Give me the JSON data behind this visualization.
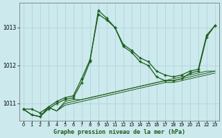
{
  "title": "Graphe pression niveau de la mer (hPa)",
  "background_color": "#cce9ed",
  "plot_bg_color": "#cce9ed",
  "grid_color": "#b0d4d8",
  "line_color": "#1a5c1a",
  "xlim": [
    -0.5,
    23.5
  ],
  "ylim": [
    1010.55,
    1013.65
  ],
  "yticks": [
    1011,
    1012,
    1013
  ],
  "xticks": [
    0,
    1,
    2,
    3,
    4,
    5,
    6,
    7,
    8,
    9,
    10,
    11,
    12,
    13,
    14,
    15,
    16,
    17,
    18,
    19,
    20,
    21,
    22,
    23
  ],
  "series_with_markers": [
    [
      1010.85,
      1010.85,
      1010.75,
      1010.9,
      1011.05,
      1011.15,
      1011.2,
      1011.65,
      1012.15,
      1013.35,
      1013.2,
      1013.0,
      1012.55,
      1012.4,
      1012.2,
      1012.1,
      1011.85,
      1011.75,
      1011.7,
      1011.75,
      1011.85,
      1011.9,
      1012.8,
      1013.05
    ],
    [
      1010.85,
      1010.7,
      1010.65,
      1010.85,
      1011.0,
      1011.1,
      1011.15,
      1011.55,
      1012.1,
      1013.45,
      1013.25,
      1013.0,
      1012.5,
      1012.35,
      1012.1,
      1012.0,
      1011.7,
      1011.6,
      1011.6,
      1011.65,
      1011.8,
      1011.85,
      1012.75,
      1013.05
    ]
  ],
  "series_plain": [
    [
      1010.85,
      1010.7,
      1010.65,
      1010.9,
      1010.8,
      1011.05,
      1011.1,
      1011.1,
      1011.15,
      1011.2,
      1011.25,
      1011.3,
      1011.35,
      1011.4,
      1011.45,
      1011.5,
      1011.55,
      1011.6,
      1011.65,
      1011.7,
      1011.75,
      1011.8,
      1011.85,
      1011.85
    ],
    [
      1010.85,
      1010.7,
      1010.65,
      1010.9,
      1010.8,
      1011.0,
      1011.05,
      1011.1,
      1011.15,
      1011.2,
      1011.25,
      1011.3,
      1011.35,
      1011.4,
      1011.45,
      1011.5,
      1011.55,
      1011.6,
      1011.6,
      1011.65,
      1011.7,
      1011.75,
      1011.8,
      1011.85
    ],
    [
      1010.85,
      1010.7,
      1010.65,
      1010.9,
      1010.8,
      1010.95,
      1011.0,
      1011.05,
      1011.1,
      1011.15,
      1011.2,
      1011.25,
      1011.3,
      1011.35,
      1011.4,
      1011.45,
      1011.5,
      1011.55,
      1011.55,
      1011.6,
      1011.65,
      1011.7,
      1011.75,
      1011.8
    ]
  ]
}
